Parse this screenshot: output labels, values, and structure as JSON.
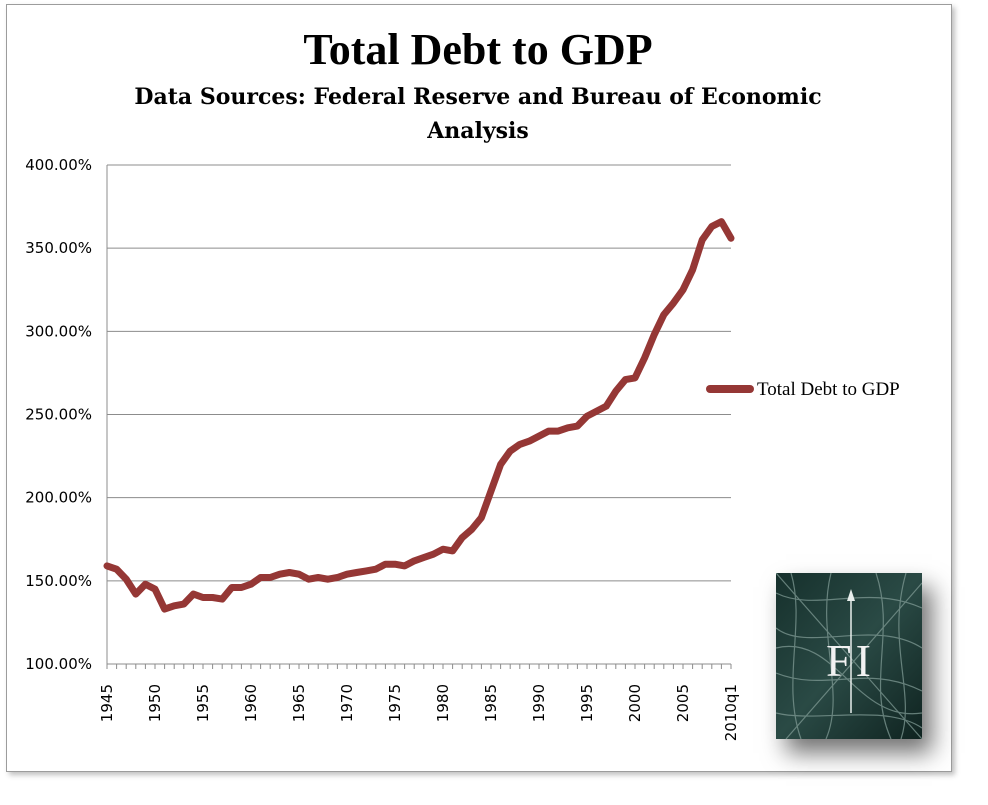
{
  "chart_data": {
    "type": "line",
    "title": "Total Debt to GDP",
    "subtitle": "Data Sources: Federal Reserve  and Bureau of Economic Analysis",
    "xlabel": "",
    "ylabel": "",
    "ylim": [
      1.0,
      4.0
    ],
    "y_ticks": [
      "100.00%",
      "150.00%",
      "200.00%",
      "250.00%",
      "300.00%",
      "350.00%",
      "400.00%"
    ],
    "x_ticks": [
      "1945",
      "1950",
      "1955",
      "1960",
      "1965",
      "1970",
      "1975",
      "1980",
      "1985",
      "1990",
      "1995",
      "2000",
      "2005",
      "2010q1"
    ],
    "grid": true,
    "legend": "right",
    "series": [
      {
        "name": "Total Debt to GDP",
        "color": "#953735",
        "x": [
          1945,
          1946,
          1947,
          1948,
          1949,
          1950,
          1951,
          1952,
          1953,
          1954,
          1955,
          1956,
          1957,
          1958,
          1959,
          1960,
          1961,
          1962,
          1963,
          1964,
          1965,
          1966,
          1967,
          1968,
          1969,
          1970,
          1971,
          1972,
          1973,
          1974,
          1975,
          1976,
          1977,
          1978,
          1979,
          1980,
          1981,
          1982,
          1983,
          1984,
          1985,
          1986,
          1987,
          1988,
          1989,
          1990,
          1991,
          1992,
          1993,
          1994,
          1995,
          1996,
          1997,
          1998,
          1999,
          2000,
          2001,
          2002,
          2003,
          2004,
          2005,
          2006,
          2007,
          2008,
          2009,
          2010
        ],
        "values": [
          1.59,
          1.57,
          1.51,
          1.42,
          1.48,
          1.45,
          1.33,
          1.35,
          1.36,
          1.42,
          1.4,
          1.4,
          1.39,
          1.46,
          1.46,
          1.48,
          1.52,
          1.52,
          1.54,
          1.55,
          1.54,
          1.51,
          1.52,
          1.51,
          1.52,
          1.54,
          1.55,
          1.56,
          1.57,
          1.6,
          1.6,
          1.59,
          1.62,
          1.64,
          1.66,
          1.69,
          1.68,
          1.76,
          1.81,
          1.88,
          2.04,
          2.2,
          2.28,
          2.32,
          2.34,
          2.37,
          2.4,
          2.4,
          2.42,
          2.43,
          2.49,
          2.52,
          2.55,
          2.64,
          2.71,
          2.72,
          2.84,
          2.98,
          3.1,
          3.17,
          3.25,
          3.37,
          3.55,
          3.63,
          3.66,
          3.56
        ]
      }
    ]
  },
  "logo": {
    "text": "FI"
  }
}
